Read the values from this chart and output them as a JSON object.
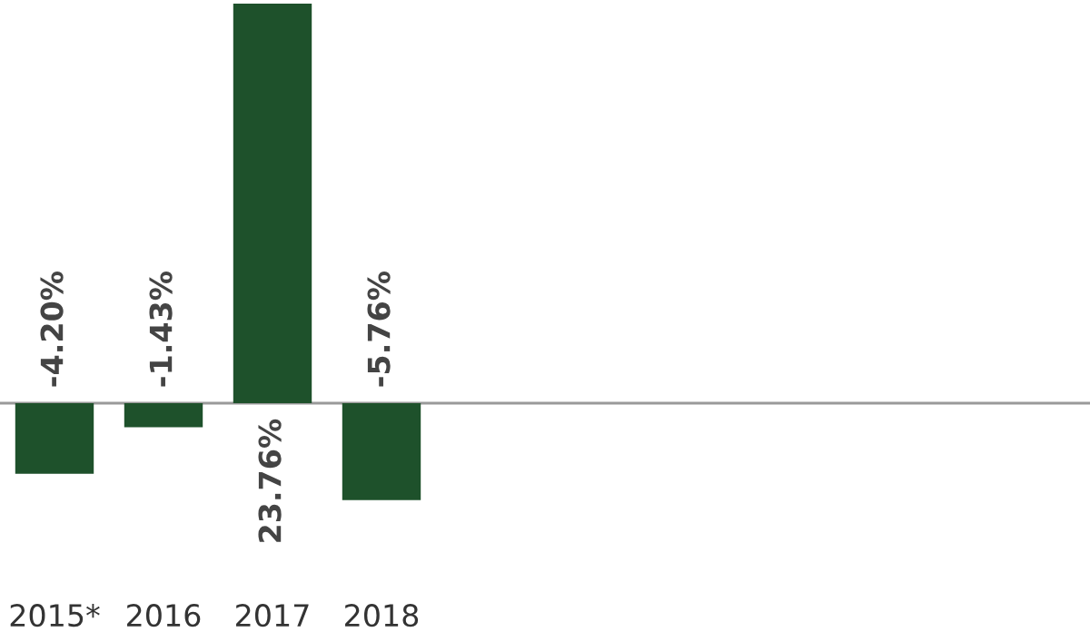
{
  "chart_data": {
    "type": "bar",
    "categories": [
      "2015*",
      "2016",
      "2017",
      "2018"
    ],
    "values": [
      -4.2,
      -1.43,
      23.76,
      -5.76
    ],
    "value_labels": [
      "-4.20%",
      "-1.43%",
      "23.76%",
      "-5.76%"
    ],
    "color": "#1e512b",
    "grid": false,
    "legend": false
  }
}
